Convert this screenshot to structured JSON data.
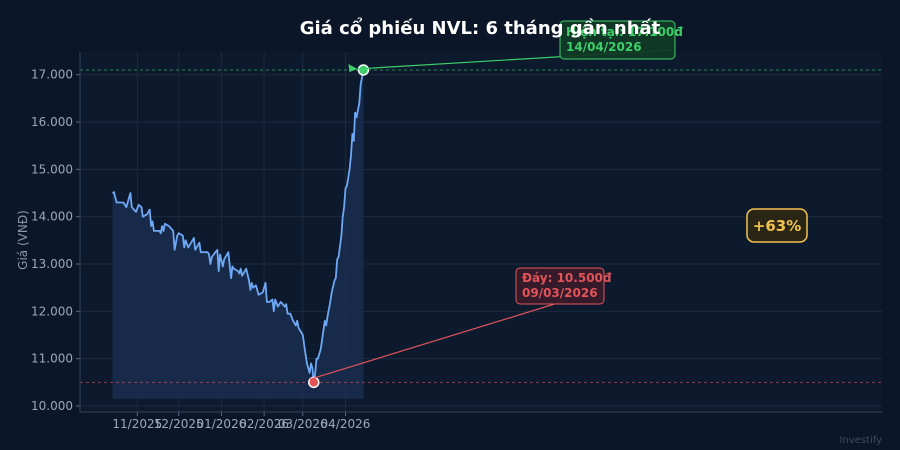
{
  "watermark": "Investify",
  "chart_data": {
    "type": "line",
    "title": "Giá cổ phiếu NVL: 6 tháng gần nhất",
    "ylabel": "Giá (VNĐ)",
    "xlabel": "",
    "ylim": [
      9900,
      17400
    ],
    "grid": true,
    "y_ticks": [
      {
        "value": 10000,
        "label": "10.000"
      },
      {
        "value": 11000,
        "label": "11.000"
      },
      {
        "value": 12000,
        "label": "12.000"
      },
      {
        "value": 13000,
        "label": "13.000"
      },
      {
        "value": 14000,
        "label": "14.000"
      },
      {
        "value": 15000,
        "label": "15.000"
      },
      {
        "value": 16000,
        "label": "16.000"
      },
      {
        "value": 17000,
        "label": "17.000"
      }
    ],
    "x_ticks": [
      {
        "date": "2025-11-01",
        "label": "11/2025"
      },
      {
        "date": "2025-12-01",
        "label": "12/2025"
      },
      {
        "date": "2026-01-01",
        "label": "01/2026"
      },
      {
        "date": "2026-02-01",
        "label": "02/2026"
      },
      {
        "date": "2026-03-01",
        "label": "03/2026"
      },
      {
        "date": "2026-04-01",
        "label": "04/2026"
      }
    ],
    "series": [
      {
        "color": "#6ea8f5",
        "points": [
          [
            "2025-10-14",
            14500
          ],
          [
            "2025-10-15",
            14520
          ],
          [
            "2025-10-17",
            14300
          ],
          [
            "2025-10-20",
            14300
          ],
          [
            "2025-10-22",
            14300
          ],
          [
            "2025-10-24",
            14200
          ],
          [
            "2025-10-27",
            14500
          ],
          [
            "2025-10-28",
            14200
          ],
          [
            "2025-10-31",
            14100
          ],
          [
            "2025-11-02",
            14250
          ],
          [
            "2025-11-04",
            14200
          ],
          [
            "2025-11-05",
            14000
          ],
          [
            "2025-11-08",
            14050
          ],
          [
            "2025-11-10",
            14150
          ],
          [
            "2025-11-11",
            13800
          ],
          [
            "2025-11-12",
            13900
          ],
          [
            "2025-11-13",
            13700
          ],
          [
            "2025-11-17",
            13700
          ],
          [
            "2025-11-18",
            13650
          ],
          [
            "2025-11-19",
            13800
          ],
          [
            "2025-11-20",
            13700
          ],
          [
            "2025-11-21",
            13850
          ],
          [
            "2025-11-24",
            13800
          ],
          [
            "2025-11-27",
            13700
          ],
          [
            "2025-11-28",
            13300
          ],
          [
            "2025-11-30",
            13600
          ],
          [
            "2025-12-01",
            13650
          ],
          [
            "2025-12-04",
            13600
          ],
          [
            "2025-12-05",
            13350
          ],
          [
            "2025-12-06",
            13500
          ],
          [
            "2025-12-08",
            13350
          ],
          [
            "2025-12-11",
            13500
          ],
          [
            "2025-12-12",
            13550
          ],
          [
            "2025-12-13",
            13300
          ],
          [
            "2025-12-15",
            13400
          ],
          [
            "2025-12-16",
            13450
          ],
          [
            "2025-12-17",
            13250
          ],
          [
            "2025-12-19",
            13250
          ],
          [
            "2025-12-22",
            13250
          ],
          [
            "2025-12-23",
            13200
          ],
          [
            "2025-12-24",
            13000
          ],
          [
            "2025-12-25",
            13150
          ],
          [
            "2025-12-29",
            13300
          ],
          [
            "2025-12-30",
            12850
          ],
          [
            "2025-12-31",
            13200
          ],
          [
            "2026-01-02",
            12950
          ],
          [
            "2026-01-03",
            13100
          ],
          [
            "2026-01-06",
            13250
          ],
          [
            "2026-01-08",
            12700
          ],
          [
            "2026-01-09",
            12950
          ],
          [
            "2026-01-10",
            12900
          ],
          [
            "2026-01-13",
            12850
          ],
          [
            "2026-01-14",
            12800
          ],
          [
            "2026-01-15",
            12900
          ],
          [
            "2026-01-16",
            12750
          ],
          [
            "2026-01-19",
            12900
          ],
          [
            "2026-01-21",
            12650
          ],
          [
            "2026-01-22",
            12450
          ],
          [
            "2026-01-23",
            12600
          ],
          [
            "2026-01-24",
            12500
          ],
          [
            "2026-01-26",
            12550
          ],
          [
            "2026-01-28",
            12350
          ],
          [
            "2026-01-31",
            12400
          ],
          [
            "2026-02-02",
            12600
          ],
          [
            "2026-02-03",
            12200
          ],
          [
            "2026-02-05",
            12200
          ],
          [
            "2026-02-07",
            12250
          ],
          [
            "2026-02-08",
            12000
          ],
          [
            "2026-02-09",
            12250
          ],
          [
            "2026-02-11",
            12100
          ],
          [
            "2026-02-13",
            12200
          ],
          [
            "2026-02-16",
            12100
          ],
          [
            "2026-02-17",
            12150
          ],
          [
            "2026-02-18",
            11950
          ],
          [
            "2026-02-20",
            11950
          ],
          [
            "2026-02-22",
            11800
          ],
          [
            "2026-02-24",
            11700
          ],
          [
            "2026-02-25",
            11800
          ],
          [
            "2026-02-26",
            11650
          ],
          [
            "2026-02-27",
            11600
          ],
          [
            "2026-03-01",
            11500
          ],
          [
            "2026-03-02",
            11300
          ],
          [
            "2026-03-03",
            11100
          ],
          [
            "2026-03-04",
            10900
          ],
          [
            "2026-03-05",
            10800
          ],
          [
            "2026-03-06",
            10700
          ],
          [
            "2026-03-07",
            10900
          ],
          [
            "2026-03-08",
            10800
          ],
          [
            "2026-03-09",
            10500
          ],
          [
            "2026-03-10",
            10700
          ],
          [
            "2026-03-11",
            11000
          ],
          [
            "2026-03-12",
            11000
          ],
          [
            "2026-03-14",
            11200
          ],
          [
            "2026-03-15",
            11400
          ],
          [
            "2026-03-17",
            11800
          ],
          [
            "2026-03-18",
            11700
          ],
          [
            "2026-03-19",
            11900
          ],
          [
            "2026-03-21",
            12200
          ],
          [
            "2026-03-22",
            12400
          ],
          [
            "2026-03-24",
            12650
          ],
          [
            "2026-03-25",
            12700
          ],
          [
            "2026-03-26",
            13100
          ],
          [
            "2026-03-27",
            13150
          ],
          [
            "2026-03-29",
            13600
          ],
          [
            "2026-03-30",
            14000
          ],
          [
            "2026-03-31",
            14200
          ],
          [
            "2026-04-01",
            14600
          ],
          [
            "2026-04-02",
            14650
          ],
          [
            "2026-04-04",
            15000
          ],
          [
            "2026-04-05",
            15300
          ],
          [
            "2026-04-06",
            15750
          ],
          [
            "2026-04-07",
            15600
          ],
          [
            "2026-04-08",
            16200
          ],
          [
            "2026-04-09",
            16100
          ],
          [
            "2026-04-11",
            16400
          ],
          [
            "2026-04-12",
            16800
          ],
          [
            "2026-04-14",
            17100
          ]
        ]
      }
    ],
    "annotations": {
      "current": {
        "line1": "Hiện tại: 17.100đ",
        "line2": "14/04/2026",
        "date": "2026-04-14",
        "value": 17100,
        "color": "#3ecf6a"
      },
      "low": {
        "line1": "Đáy: 10.500đ",
        "line2": "09/03/2026",
        "date": "2026-03-09",
        "value": 10500,
        "color": "#e2545a"
      },
      "change": {
        "text": "+63%",
        "color": "#f2c14e"
      }
    }
  }
}
